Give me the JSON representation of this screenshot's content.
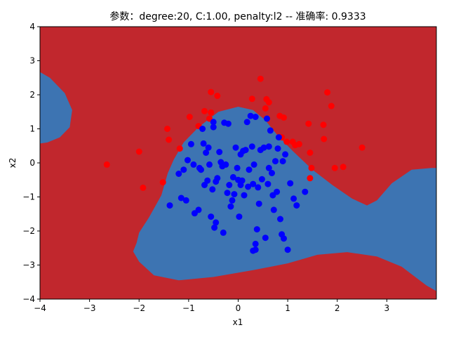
{
  "chart_data": {
    "type": "scatter",
    "title": "参数：degree:20, C:1.00, penalty:l2 -- 准确率: 0.9333",
    "xlabel": "x1",
    "ylabel": "x2",
    "xlim": [
      -4,
      4
    ],
    "ylim": [
      -4,
      4
    ],
    "x_ticks": [
      -4,
      -3,
      -2,
      -1,
      0,
      1,
      2,
      3
    ],
    "y_ticks": [
      -4,
      -3,
      -2,
      -1,
      0,
      1,
      2,
      3,
      4
    ],
    "grid": false,
    "legend": "none",
    "background_regions": {
      "outer_class_color": "#c1272d",
      "inner_class_color": "#3d74b2",
      "description_note": "decision regions"
    },
    "series": [
      {
        "color": "#ff0000",
        "points": [
          [
            -2.65,
            -0.05
          ],
          [
            -2.0,
            0.33
          ],
          [
            -1.92,
            -0.73
          ],
          [
            -1.52,
            -0.57
          ],
          [
            -1.43,
            1.0
          ],
          [
            -1.4,
            0.68
          ],
          [
            -1.18,
            0.42
          ],
          [
            -0.98,
            1.35
          ],
          [
            -0.8,
            1.08
          ],
          [
            -0.68,
            1.52
          ],
          [
            -0.55,
            2.08
          ],
          [
            -0.55,
            1.48
          ],
          [
            -0.42,
            1.97
          ],
          [
            -0.58,
            1.3
          ],
          [
            0.28,
            1.88
          ],
          [
            0.45,
            2.47
          ],
          [
            0.55,
            1.6
          ],
          [
            0.57,
            1.87
          ],
          [
            0.62,
            1.78
          ],
          [
            0.84,
            1.38
          ],
          [
            0.92,
            1.33
          ],
          [
            0.88,
            0.75
          ],
          [
            0.98,
            0.62
          ],
          [
            1.1,
            0.62
          ],
          [
            1.15,
            0.52
          ],
          [
            1.23,
            0.55
          ],
          [
            1.42,
            1.15
          ],
          [
            1.45,
            0.3
          ],
          [
            1.48,
            -0.15
          ],
          [
            1.45,
            -0.45
          ],
          [
            1.72,
            1.12
          ],
          [
            1.73,
            0.7
          ],
          [
            1.8,
            2.07
          ],
          [
            1.88,
            1.67
          ],
          [
            1.95,
            -0.15
          ],
          [
            2.12,
            -0.12
          ],
          [
            2.5,
            0.45
          ]
        ]
      },
      {
        "color": "#0000ff",
        "points": [
          [
            -1.38,
            -1.25
          ],
          [
            -1.2,
            -0.32
          ],
          [
            -1.15,
            -1.03
          ],
          [
            -1.1,
            -0.2
          ],
          [
            -1.05,
            -1.1
          ],
          [
            -1.02,
            0.08
          ],
          [
            -0.95,
            0.55
          ],
          [
            -0.9,
            -0.05
          ],
          [
            -0.88,
            -1.48
          ],
          [
            -0.8,
            -1.38
          ],
          [
            -0.78,
            -0.15
          ],
          [
            -0.75,
            -0.2
          ],
          [
            -0.72,
            1.0
          ],
          [
            -0.7,
            0.57
          ],
          [
            -0.68,
            -0.65
          ],
          [
            -0.65,
            0.3
          ],
          [
            -0.62,
            -0.52
          ],
          [
            -0.6,
            0.45
          ],
          [
            -0.58,
            -0.05
          ],
          [
            -0.55,
            -1.58
          ],
          [
            -0.52,
            -0.78
          ],
          [
            -0.5,
            1.2
          ],
          [
            -0.5,
            1.05
          ],
          [
            -0.48,
            -1.9
          ],
          [
            -0.45,
            -0.55
          ],
          [
            -0.45,
            -1.75
          ],
          [
            -0.42,
            -0.45
          ],
          [
            -0.38,
            0.32
          ],
          [
            -0.35,
            0.02
          ],
          [
            -0.32,
            -0.1
          ],
          [
            -0.3,
            -2.05
          ],
          [
            -0.28,
            1.18
          ],
          [
            -0.25,
            -0.05
          ],
          [
            -0.22,
            -0.88
          ],
          [
            -0.2,
            1.15
          ],
          [
            -0.18,
            -0.65
          ],
          [
            -0.15,
            -1.28
          ],
          [
            -0.12,
            -1.1
          ],
          [
            -0.1,
            -0.42
          ],
          [
            -0.08,
            -0.92
          ],
          [
            -0.05,
            0.45
          ],
          [
            -0.02,
            -0.15
          ],
          [
            0.0,
            -0.5
          ],
          [
            0.02,
            -1.58
          ],
          [
            0.05,
            0.25
          ],
          [
            0.05,
            -0.65
          ],
          [
            0.08,
            -0.52
          ],
          [
            0.1,
            0.35
          ],
          [
            0.12,
            -0.95
          ],
          [
            0.15,
            0.38
          ],
          [
            0.18,
            1.2
          ],
          [
            0.2,
            -0.7
          ],
          [
            0.22,
            -0.2
          ],
          [
            0.25,
            1.38
          ],
          [
            0.28,
            0.48
          ],
          [
            0.3,
            -0.62
          ],
          [
            0.32,
            -0.05
          ],
          [
            0.35,
            1.35
          ],
          [
            0.35,
            -2.38
          ],
          [
            0.38,
            -1.95
          ],
          [
            0.4,
            -0.72
          ],
          [
            0.42,
            -1.2
          ],
          [
            0.45,
            0.38
          ],
          [
            0.48,
            -0.48
          ],
          [
            0.52,
            0.45
          ],
          [
            0.55,
            -2.2
          ],
          [
            0.58,
            1.3
          ],
          [
            0.6,
            -0.62
          ],
          [
            0.62,
            0.48
          ],
          [
            0.65,
            0.95
          ],
          [
            0.68,
            -0.3
          ],
          [
            0.7,
            -0.95
          ],
          [
            0.72,
            -1.38
          ],
          [
            0.75,
            0.05
          ],
          [
            0.78,
            -0.85
          ],
          [
            0.8,
            0.42
          ],
          [
            0.82,
            0.75
          ],
          [
            0.85,
            -1.65
          ],
          [
            0.88,
            -2.1
          ],
          [
            0.9,
            0.05
          ],
          [
            0.92,
            -2.22
          ],
          [
            0.95,
            0.25
          ],
          [
            1.0,
            -2.55
          ],
          [
            1.05,
            -0.6
          ],
          [
            1.12,
            -1.05
          ],
          [
            1.18,
            -1.25
          ],
          [
            1.35,
            -0.85
          ],
          [
            0.3,
            -2.58
          ],
          [
            0.35,
            -2.55
          ],
          [
            0.62,
            -0.15
          ]
        ]
      }
    ]
  }
}
